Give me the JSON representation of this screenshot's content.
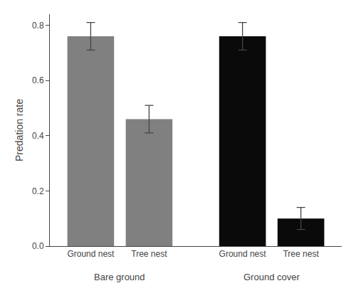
{
  "chart_data": {
    "type": "bar",
    "categories": [
      "Ground nest",
      "Tree nest",
      "Ground nest",
      "Tree nest"
    ],
    "groups": [
      "Bare ground",
      "Ground cover"
    ],
    "values": [
      0.76,
      0.46,
      0.76,
      0.1
    ],
    "errors": [
      0.05,
      0.05,
      0.05,
      0.04
    ],
    "colors": [
      "#808080",
      "#808080",
      "#0a0a0a",
      "#0a0a0a"
    ],
    "ylabel": "Predation rate",
    "ylim": [
      0.0,
      0.84
    ],
    "yticks": [
      {
        "value": 0.0,
        "label": "0.0"
      },
      0.2,
      0.4,
      0.6,
      0.8
    ],
    "grid": false
  }
}
